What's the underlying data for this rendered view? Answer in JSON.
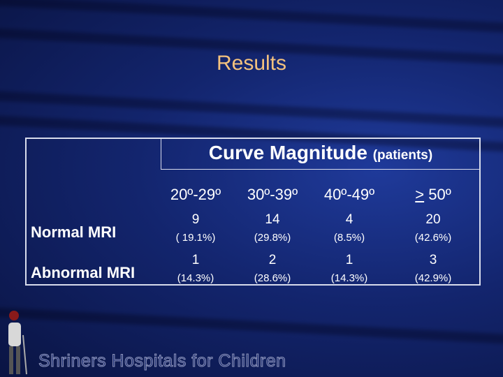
{
  "title": "Results",
  "table": {
    "header": {
      "main": "Curve Magnitude",
      "unit": "(patients)"
    },
    "columns": [
      {
        "label": "20º-29º"
      },
      {
        "label": "30º-39º"
      },
      {
        "label": "40º-49º"
      },
      {
        "symbol": ">",
        "label": "50º"
      }
    ],
    "rows": [
      {
        "label": "Normal MRI",
        "cells": [
          {
            "count": "9",
            "percent": "( 19.1%)"
          },
          {
            "count": "14",
            "percent": "(29.8%)"
          },
          {
            "count": "4",
            "percent": "(8.5%)"
          },
          {
            "count": "20",
            "percent": "(42.6%)"
          }
        ]
      },
      {
        "label": "Abnormal MRI",
        "cells": [
          {
            "count": "1",
            "percent": "(14.3%)"
          },
          {
            "count": "2",
            "percent": "(28.6%)"
          },
          {
            "count": "1",
            "percent": "(14.3%)"
          },
          {
            "count": "3",
            "percent": "(42.9%)"
          }
        ]
      }
    ]
  },
  "footer": "Shriners Hospitals for Children"
}
